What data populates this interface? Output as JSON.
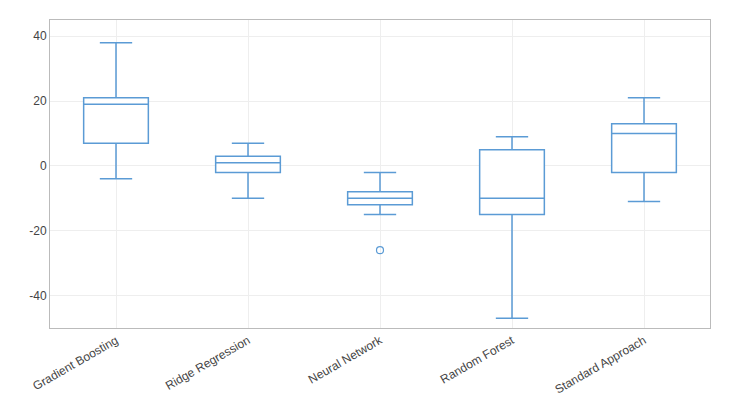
{
  "chart_data": {
    "type": "box",
    "categories": [
      "Gradient Boosting",
      "Ridge Regression",
      "Neural Network",
      "Random Forest",
      "Standard Approach"
    ],
    "boxes": [
      {
        "q1": 7,
        "median": 19,
        "q3": 21,
        "whislo": -4,
        "whishi": 38,
        "fliers": []
      },
      {
        "q1": -2,
        "median": 1,
        "q3": 3,
        "whislo": -10,
        "whishi": 7,
        "fliers": []
      },
      {
        "q1": -12,
        "median": -10,
        "q3": -8,
        "whislo": -15,
        "whishi": -2,
        "fliers": [
          -26
        ]
      },
      {
        "q1": -15,
        "median": -10,
        "q3": 5,
        "whislo": -47,
        "whishi": 9,
        "fliers": []
      },
      {
        "q1": -2,
        "median": 10,
        "q3": 13,
        "whislo": -11,
        "whishi": 21,
        "fliers": []
      }
    ],
    "color": "#5B9BD5",
    "ylim": [
      -50,
      45
    ],
    "yticks": [
      -40,
      -20,
      0,
      20,
      40
    ],
    "grid": true
  }
}
